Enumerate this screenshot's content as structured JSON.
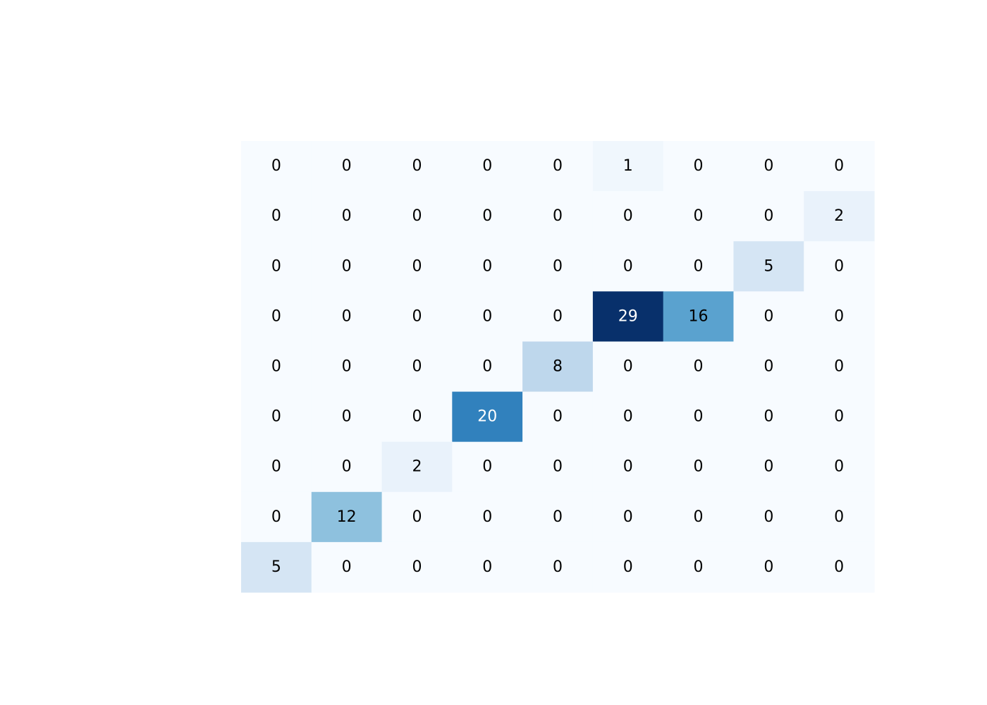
{
  "chart_data": {
    "type": "heatmap",
    "colorscale": "Blues",
    "zmin": 0,
    "zmax": 29,
    "title": "",
    "xlabel": "",
    "ylabel": "",
    "grid": false,
    "legend": "none",
    "rows": [
      [
        0,
        0,
        0,
        0,
        0,
        1,
        0,
        0,
        0
      ],
      [
        0,
        0,
        0,
        0,
        0,
        0,
        0,
        0,
        2
      ],
      [
        0,
        0,
        0,
        0,
        0,
        0,
        0,
        5,
        0
      ],
      [
        0,
        0,
        0,
        0,
        0,
        29,
        16,
        0,
        0
      ],
      [
        0,
        0,
        0,
        0,
        8,
        0,
        0,
        0,
        0
      ],
      [
        0,
        0,
        0,
        20,
        0,
        0,
        0,
        0,
        0
      ],
      [
        0,
        0,
        2,
        0,
        0,
        0,
        0,
        0,
        0
      ],
      [
        0,
        12,
        0,
        0,
        0,
        0,
        0,
        0,
        0
      ],
      [
        5,
        0,
        0,
        0,
        0,
        0,
        0,
        0,
        0
      ]
    ],
    "text_colors": {
      "dark": "#000000",
      "light": "#ffffff"
    }
  }
}
